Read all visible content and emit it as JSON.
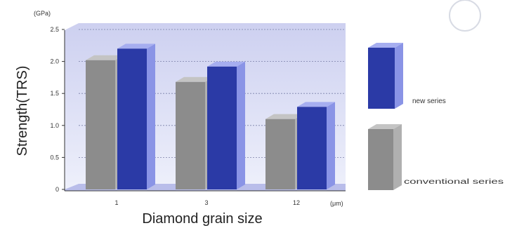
{
  "chart_data": {
    "type": "bar",
    "title": "",
    "categories": [
      "1",
      "3",
      "12"
    ],
    "series": [
      {
        "name": "conventional series",
        "color": "#8c8c8c",
        "values": [
          2.02,
          1.68,
          1.1
        ]
      },
      {
        "name": "new series",
        "color": "#2b3aa6",
        "values": [
          2.2,
          1.92,
          1.29
        ]
      }
    ],
    "ylim": [
      0,
      2.5
    ],
    "yticks": [
      "0",
      "0.5",
      "1.0",
      "1.5",
      "2.0",
      "2.5"
    ],
    "ylabel": "Strength(TRS)",
    "yunit": "(GPa)",
    "xlabel": "Diamond grain size",
    "xunit": "(μm)",
    "legend_position": "right",
    "grid": true
  }
}
